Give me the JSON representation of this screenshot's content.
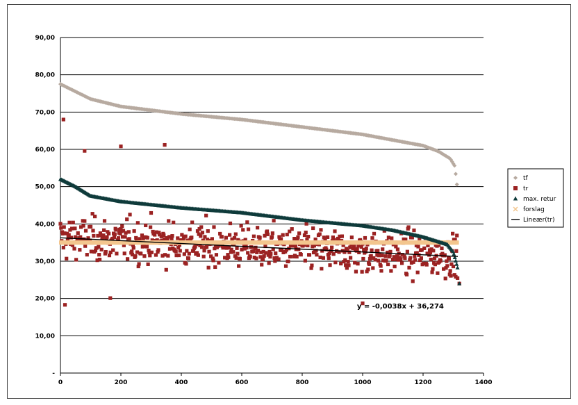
{
  "chart_data": {
    "type": "scatter",
    "x_ticks": [
      "0",
      "200",
      "400",
      "600",
      "800",
      "1000",
      "1200",
      "1400"
    ],
    "y_ticks": [
      "-",
      "10,00",
      "20,00",
      "30,00",
      "40,00",
      "50,00",
      "60,00",
      "70,00",
      "80,00",
      "90,00"
    ],
    "xlim": [
      0,
      1400
    ],
    "ylim": [
      0,
      90
    ],
    "grid": "horizontal",
    "legend_position": "right",
    "n_points": 1315,
    "series": [
      {
        "name": "tf",
        "marker": "diamond",
        "color": "#b7aaa0",
        "trend": [
          [
            0,
            77.5
          ],
          [
            50,
            75.5
          ],
          [
            100,
            73.5
          ],
          [
            200,
            71.5
          ],
          [
            400,
            69.5
          ],
          [
            600,
            68
          ],
          [
            800,
            66
          ],
          [
            1000,
            64
          ],
          [
            1100,
            62.5
          ],
          [
            1200,
            61
          ],
          [
            1250,
            59.5
          ],
          [
            1290,
            57.5
          ],
          [
            1305,
            55.5
          ],
          [
            1315,
            48.5
          ]
        ]
      },
      {
        "name": "tr",
        "marker": "square",
        "color": "#9b2222",
        "trend_line": {
          "slope": -0.0038,
          "intercept": 36.274
        },
        "spread": [
          18,
          61
        ],
        "notable_points": [
          [
            10,
            68
          ],
          [
            15,
            18.3
          ],
          [
            165,
            20.1
          ],
          [
            1000,
            18.7
          ],
          [
            345,
            61.2
          ],
          [
            200,
            60.8
          ],
          [
            80,
            59.6
          ],
          [
            1320,
            24
          ]
        ]
      },
      {
        "name": "max. retur",
        "marker": "triangle",
        "color": "#0f3b3b",
        "trend": [
          [
            0,
            52
          ],
          [
            50,
            50
          ],
          [
            100,
            47.5
          ],
          [
            200,
            46
          ],
          [
            400,
            44.3
          ],
          [
            600,
            43
          ],
          [
            800,
            41
          ],
          [
            1000,
            39.5
          ],
          [
            1100,
            38.3
          ],
          [
            1200,
            36.5
          ],
          [
            1280,
            34.5
          ],
          [
            1300,
            32.5
          ],
          [
            1310,
            29.5
          ],
          [
            1318,
            27
          ]
        ]
      },
      {
        "name": "forslag",
        "marker": "cross",
        "color": "#f3c68e",
        "value": 35
      },
      {
        "name": "Lineær(tr)",
        "marker": "line",
        "color": "#000000"
      }
    ],
    "annotation": "y = -0,0038x + 36,274"
  }
}
